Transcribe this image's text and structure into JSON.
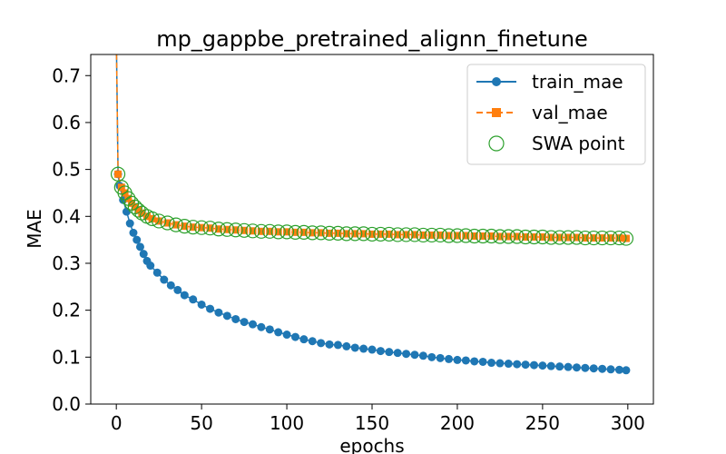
{
  "chart_data": {
    "type": "line",
    "title": "mp_gappbe_pretrained_alignn_finetune",
    "xlabel": "epochs",
    "ylabel": "MAE",
    "xlim": [
      -15,
      315
    ],
    "ylim": [
      0,
      0.745
    ],
    "xticks": [
      0,
      50,
      100,
      150,
      200,
      250,
      300
    ],
    "yticks": [
      0.0,
      0.1,
      0.2,
      0.3,
      0.4,
      0.5,
      0.6,
      0.7
    ],
    "xtick_labels": [
      "0",
      "50",
      "100",
      "150",
      "200",
      "250",
      "300"
    ],
    "ytick_labels": [
      "0.0",
      "0.1",
      "0.2",
      "0.3",
      "0.4",
      "0.5",
      "0.6",
      "0.7"
    ],
    "grid": false,
    "legend": {
      "position": "top-right"
    },
    "train_points": [
      [
        0,
        0.78
      ],
      [
        1,
        0.49
      ],
      [
        2,
        0.465
      ],
      [
        4,
        0.435
      ],
      [
        6,
        0.41
      ],
      [
        8,
        0.385
      ],
      [
        10,
        0.365
      ],
      [
        12,
        0.35
      ],
      [
        14,
        0.335
      ],
      [
        16,
        0.32
      ],
      [
        18,
        0.305
      ],
      [
        20,
        0.295
      ],
      [
        24,
        0.28
      ],
      [
        28,
        0.265
      ],
      [
        32,
        0.253
      ],
      [
        36,
        0.243
      ],
      [
        40,
        0.232
      ],
      [
        45,
        0.223
      ],
      [
        50,
        0.212
      ],
      [
        55,
        0.203
      ],
      [
        60,
        0.195
      ],
      [
        65,
        0.188
      ],
      [
        70,
        0.181
      ],
      [
        75,
        0.175
      ],
      [
        80,
        0.17
      ],
      [
        85,
        0.164
      ],
      [
        90,
        0.159
      ],
      [
        95,
        0.153
      ],
      [
        100,
        0.148
      ],
      [
        105,
        0.143
      ],
      [
        110,
        0.138
      ],
      [
        115,
        0.134
      ],
      [
        120,
        0.13
      ],
      [
        125,
        0.127
      ],
      [
        130,
        0.126
      ],
      [
        135,
        0.123
      ],
      [
        140,
        0.12
      ],
      [
        145,
        0.118
      ],
      [
        150,
        0.116
      ],
      [
        155,
        0.113
      ],
      [
        160,
        0.111
      ],
      [
        165,
        0.109
      ],
      [
        170,
        0.107
      ],
      [
        175,
        0.105
      ],
      [
        180,
        0.103
      ],
      [
        185,
        0.1
      ],
      [
        190,
        0.098
      ],
      [
        195,
        0.096
      ],
      [
        200,
        0.094
      ],
      [
        205,
        0.093
      ],
      [
        210,
        0.091
      ],
      [
        215,
        0.09
      ],
      [
        220,
        0.088
      ],
      [
        225,
        0.087
      ],
      [
        230,
        0.086
      ],
      [
        235,
        0.085
      ],
      [
        240,
        0.084
      ],
      [
        245,
        0.083
      ],
      [
        250,
        0.082
      ],
      [
        255,
        0.081
      ],
      [
        260,
        0.08
      ],
      [
        265,
        0.079
      ],
      [
        270,
        0.078
      ],
      [
        275,
        0.077
      ],
      [
        280,
        0.076
      ],
      [
        285,
        0.075
      ],
      [
        290,
        0.074
      ],
      [
        295,
        0.073
      ],
      [
        299,
        0.072
      ]
    ],
    "val_points": [
      [
        0,
        0.78
      ],
      [
        1,
        0.49
      ],
      [
        3,
        0.462
      ],
      [
        5,
        0.45
      ],
      [
        7,
        0.438
      ],
      [
        9,
        0.428
      ],
      [
        11,
        0.42
      ],
      [
        13,
        0.413
      ],
      [
        15,
        0.407
      ],
      [
        18,
        0.4
      ],
      [
        21,
        0.395
      ],
      [
        25,
        0.39
      ],
      [
        30,
        0.386
      ],
      [
        35,
        0.382
      ],
      [
        40,
        0.379
      ],
      [
        45,
        0.377
      ],
      [
        50,
        0.376
      ],
      [
        55,
        0.375
      ],
      [
        60,
        0.373
      ],
      [
        65,
        0.372
      ],
      [
        70,
        0.371
      ],
      [
        75,
        0.37
      ],
      [
        80,
        0.369
      ],
      [
        85,
        0.368
      ],
      [
        90,
        0.368
      ],
      [
        95,
        0.367
      ],
      [
        100,
        0.367
      ],
      [
        105,
        0.366
      ],
      [
        110,
        0.366
      ],
      [
        115,
        0.365
      ],
      [
        120,
        0.365
      ],
      [
        125,
        0.364
      ],
      [
        130,
        0.364
      ],
      [
        135,
        0.363
      ],
      [
        140,
        0.363
      ],
      [
        145,
        0.363
      ],
      [
        150,
        0.362
      ],
      [
        155,
        0.362
      ],
      [
        160,
        0.362
      ],
      [
        165,
        0.361
      ],
      [
        170,
        0.361
      ],
      [
        175,
        0.361
      ],
      [
        180,
        0.36
      ],
      [
        185,
        0.36
      ],
      [
        190,
        0.36
      ],
      [
        195,
        0.359
      ],
      [
        200,
        0.359
      ],
      [
        205,
        0.359
      ],
      [
        210,
        0.358
      ],
      [
        215,
        0.358
      ],
      [
        220,
        0.358
      ],
      [
        225,
        0.357
      ],
      [
        230,
        0.357
      ],
      [
        235,
        0.357
      ],
      [
        240,
        0.356
      ],
      [
        245,
        0.356
      ],
      [
        250,
        0.356
      ],
      [
        255,
        0.355
      ],
      [
        260,
        0.355
      ],
      [
        265,
        0.355
      ],
      [
        270,
        0.355
      ],
      [
        275,
        0.354
      ],
      [
        280,
        0.354
      ],
      [
        285,
        0.354
      ],
      [
        290,
        0.354
      ],
      [
        295,
        0.354
      ],
      [
        299,
        0.353
      ]
    ],
    "series": [
      {
        "name": "train_mae",
        "color": "#1f77b4",
        "linestyle": "solid",
        "marker": "circle"
      },
      {
        "name": "val_mae",
        "color": "#ff7f0e",
        "linestyle": "dashed",
        "marker": "square"
      },
      {
        "name": "SWA point",
        "color": "#2ca02c",
        "linestyle": "none",
        "marker": "hollow-circle"
      }
    ]
  }
}
